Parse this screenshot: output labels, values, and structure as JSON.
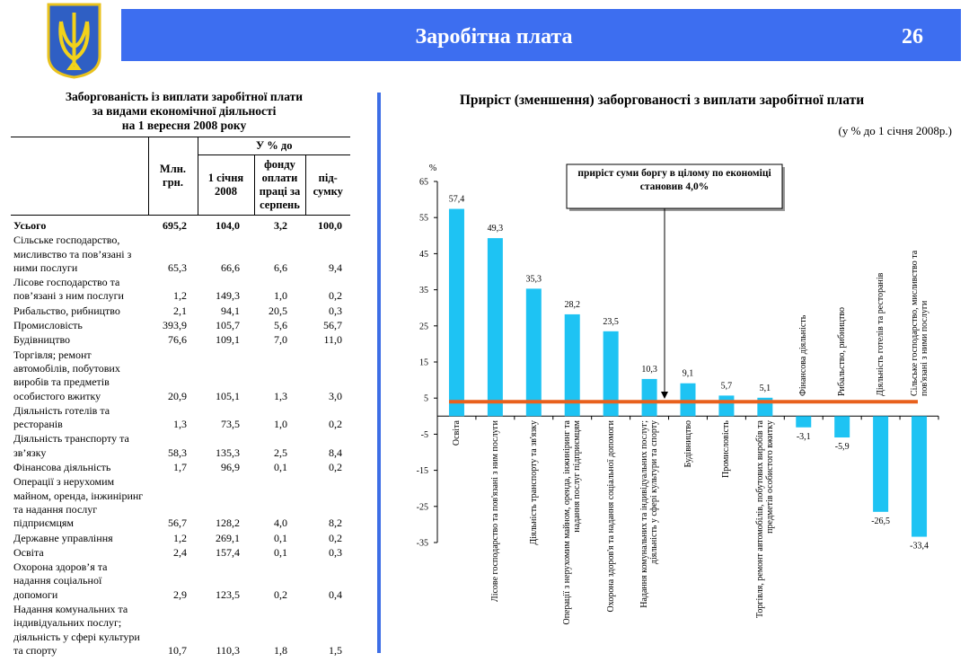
{
  "header": {
    "title": "Заробітна плата",
    "page": "26"
  },
  "table": {
    "title": [
      "Заборгованість із виплати заробітної плати",
      "за видами економічної діяльності",
      "на 1 вересня 2008 року"
    ],
    "columns": {
      "amount": "Млн. грн.",
      "percent_group": "У % до",
      "percent": [
        "1 січня 2008",
        "фонду оплати праці за серпень",
        "під-сумку"
      ]
    },
    "rows": [
      {
        "label": "Усього",
        "cells": [
          "695,2",
          "104,0",
          "3,2",
          "100,0"
        ]
      },
      {
        "label": "Сільське господарство, мисливство та пов’язані з ними послуги",
        "cells": [
          "65,3",
          "66,6",
          "6,6",
          "9,4"
        ]
      },
      {
        "label": "Лісове господарство та пов’язані з ним послуги",
        "cells": [
          "1,2",
          "149,3",
          "1,0",
          "0,2"
        ]
      },
      {
        "label": "Рибальство, рибництво",
        "cells": [
          "2,1",
          "94,1",
          "20,5",
          "0,3"
        ]
      },
      {
        "label": "Промисловість",
        "cells": [
          "393,9",
          "105,7",
          "5,6",
          "56,7"
        ]
      },
      {
        "label": "Будівництво",
        "cells": [
          "76,6",
          "109,1",
          "7,0",
          "11,0"
        ]
      },
      {
        "label": "Торгівля; ремонт автомобілів, побутових виробів та предметів особистого вжитку",
        "cells": [
          "20,9",
          "105,1",
          "1,3",
          "3,0"
        ]
      },
      {
        "label": "Діяльність готелів та ресторанів",
        "cells": [
          "1,3",
          "73,5",
          "1,0",
          "0,2"
        ]
      },
      {
        "label": "Діяльність транспорту та зв’язку",
        "cells": [
          "58,3",
          "135,3",
          "2,5",
          "8,4"
        ]
      },
      {
        "label": "Фінансова діяльність",
        "cells": [
          "1,7",
          "96,9",
          "0,1",
          "0,2"
        ]
      },
      {
        "label": "Операції з нерухомим майном, оренда, інжиніринг та надання послуг підприємцям",
        "cells": [
          "56,7",
          "128,2",
          "4,0",
          "8,2"
        ]
      },
      {
        "label": "Державне управління",
        "cells": [
          "1,2",
          "269,1",
          "0,1",
          "0,2"
        ]
      },
      {
        "label": "Освіта",
        "cells": [
          "2,4",
          "157,4",
          "0,1",
          "0,3"
        ]
      },
      {
        "label": "Охорона здоров’я та надання соціальної допомоги",
        "cells": [
          "2,9",
          "123,5",
          "0,2",
          "0,4"
        ]
      },
      {
        "label": "Надання комунальних та індивідуальних послуг; діяльність у сфері культури та спорту",
        "cells": [
          "10,7",
          "110,3",
          "1,8",
          "1,5"
        ]
      }
    ]
  },
  "chart_data": {
    "type": "bar",
    "title": "Приріст (зменшення) заборгованості з виплати заробітної плати",
    "subtitle": "(у % до 1 січня 2008р.)",
    "y_label": "%",
    "categories": [
      "Освіта",
      "Лісове господарство та пов'язані з ним послуги",
      "Діяльність транспорту та зв'язку",
      "Операції з нерухомим майном, оренда, інжиніринг та надання послуг підприємцям",
      "Охорона здоров'я та надання соціальної допомоги",
      "Надання комунальних та індивідуальних послуг; діяльність у сфері культури та спорту",
      "Будівництво",
      "Промисловість",
      "Торгівля, ремонт автомобілів, побутових виробів та предметів особистого вжитку",
      "Фінансова діяльність",
      "Рибальство, рибництво",
      "Діяльність готелів та ресторанів",
      "Сільське господарство, мисливство та пов'язані з ними послуги"
    ],
    "values": [
      57.4,
      49.3,
      35.3,
      28.2,
      23.5,
      10.3,
      9.1,
      5.7,
      5.1,
      -3.1,
      -5.9,
      -26.5,
      -33.4
    ],
    "value_labels": [
      "57,4",
      "49,3",
      "35,3",
      "28,2",
      "23,5",
      "10,3",
      "9,1",
      "5,7",
      "5,1",
      "-3,1",
      "-5,9",
      "-26,5",
      "-33,4"
    ],
    "color": "#1ec3f3",
    "ylim": [
      -35,
      65
    ],
    "yticks": [
      65,
      55,
      45,
      35,
      25,
      15,
      5,
      -5,
      -15,
      -25,
      -35
    ],
    "annotation": "приріст суми боргу в цілому по економіці становив 4,0%",
    "reference_line": {
      "value": 4.0,
      "color": "#e8601c"
    }
  }
}
